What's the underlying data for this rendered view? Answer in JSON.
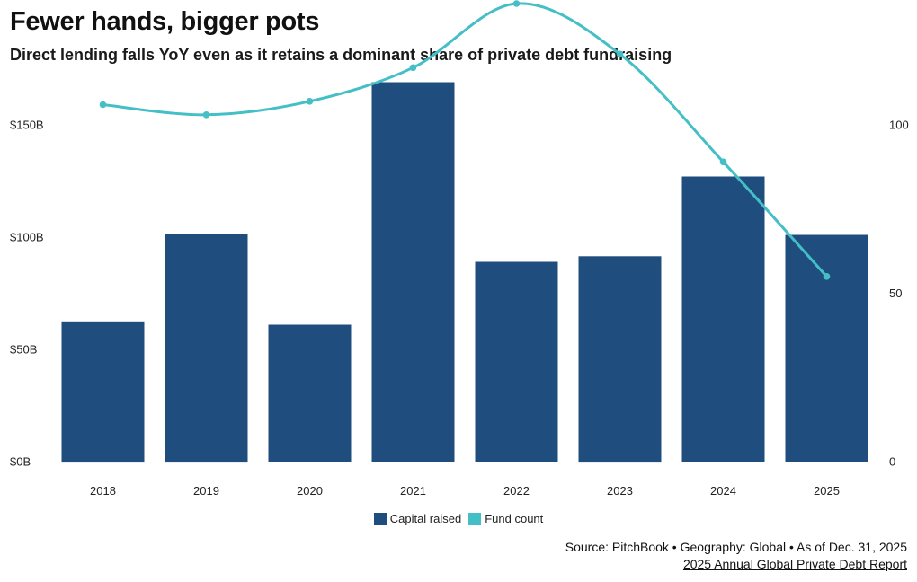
{
  "title": "Fewer hands, bigger pots",
  "subtitle": "Direct lending falls YoY even as it retains a dominant share of private debt fundraising",
  "source": "Source: PitchBook • Geography: Global • As of Dec. 31, 2025",
  "report_link": "2025 Annual Global Private Debt Report",
  "colors": {
    "bar": "#1f4e7e",
    "line": "#44bfc6"
  },
  "chart_data": {
    "type": "bar",
    "categories": [
      "2018",
      "2019",
      "2020",
      "2021",
      "2022",
      "2023",
      "2024",
      "2025"
    ],
    "series": [
      {
        "name": "Capital raised",
        "type": "bar",
        "axis": "left",
        "values": [
          62.5,
          101.5,
          61,
          169,
          89,
          91.5,
          127,
          101
        ]
      },
      {
        "name": "Fund count",
        "type": "line",
        "axis": "right",
        "values": [
          106,
          103,
          107,
          117,
          136,
          121,
          89,
          55
        ]
      }
    ],
    "y_left": {
      "ylim": [
        0,
        168
      ],
      "ticks": [
        0,
        50,
        100,
        150
      ],
      "tick_labels": [
        "$0B",
        "$50B",
        "$100B",
        "$150B"
      ]
    },
    "y_right": {
      "ylim": [
        0,
        112
      ],
      "ticks": [
        0,
        50,
        100
      ],
      "tick_labels": [
        "0",
        "50",
        "100"
      ]
    },
    "legend": {
      "position": "bottom-center",
      "entries": [
        "Capital raised",
        "Fund count"
      ]
    },
    "grid": false
  }
}
